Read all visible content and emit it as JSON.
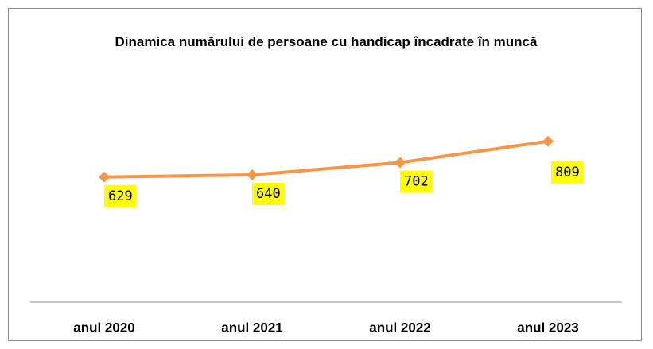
{
  "chart_data": {
    "type": "line",
    "title": "Dinamica numărului de persoane cu handicap încadrate în muncă",
    "categories": [
      "anul 2020",
      "anul 2021",
      "anul 2022",
      "anul 2023"
    ],
    "series": [
      {
        "name": "",
        "color": "#f79646",
        "values": [
          629,
          640,
          702,
          809
        ]
      }
    ],
    "ylim": [
      0,
      1000
    ],
    "label_background": "#ffff00"
  }
}
